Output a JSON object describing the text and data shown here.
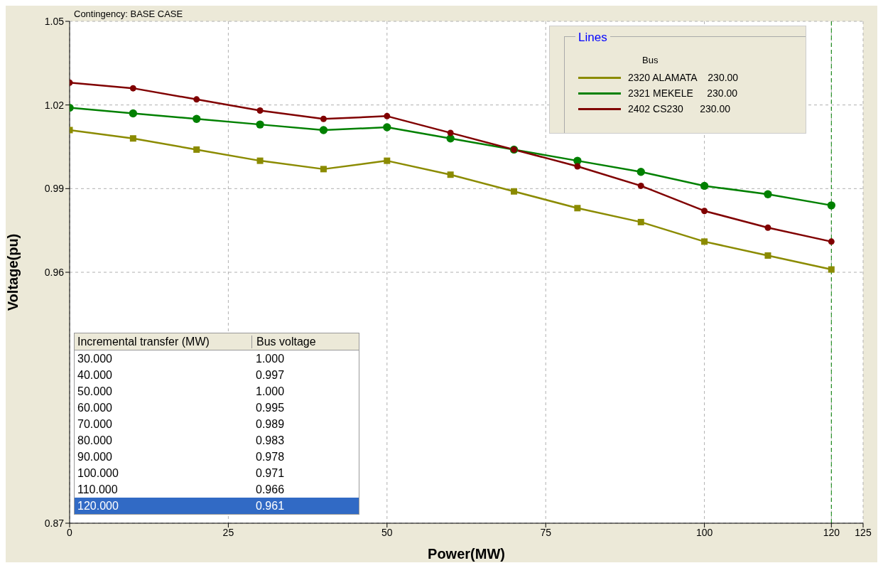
{
  "chart_data": {
    "type": "line",
    "title": "Contingency:  BASE CASE",
    "xlabel": "Power(MW)",
    "ylabel": "Voltage(pu)",
    "legend_title": "Lines",
    "x": [
      0,
      10,
      20,
      30,
      40,
      50,
      60,
      70,
      80,
      90,
      100,
      110,
      120
    ],
    "series": [
      {
        "name": "2320 ALAMATA    230.00",
        "color": "#8b8b00",
        "marker": "square",
        "values": [
          1.011,
          1.008,
          1.004,
          1.0,
          0.997,
          1.0,
          0.995,
          0.989,
          0.983,
          0.978,
          0.971,
          0.966,
          0.961
        ]
      },
      {
        "name": "2321 MEKELE     230.00",
        "color": "#008000",
        "marker": "circle",
        "values": [
          1.019,
          1.017,
          1.015,
          1.013,
          1.011,
          1.012,
          1.008,
          1.004,
          1.0,
          0.996,
          0.991,
          0.988,
          0.984
        ]
      },
      {
        "name": "2402 CS230      230.00",
        "color": "#800000",
        "marker": "circle",
        "values": [
          1.028,
          1.026,
          1.022,
          1.018,
          1.015,
          1.016,
          1.01,
          1.004,
          0.998,
          0.991,
          0.982,
          0.976,
          0.971
        ]
      }
    ],
    "xlim": [
      0,
      125
    ],
    "xticks": [
      0,
      25,
      50,
      75,
      100,
      120,
      125
    ],
    "ylim": [
      0.87,
      1.05
    ],
    "yticks": [
      0.87,
      0.96,
      0.99,
      1.02,
      1.05
    ],
    "grid": true,
    "legend": "top right",
    "line_style": "solid",
    "ref_lines": [
      {
        "axis": "x",
        "value": 120,
        "color": "#008000",
        "line_style": "dashed"
      }
    ],
    "annotations": [
      "Bus",
      "Incremental transfer (MW)",
      "Bus voltage",
      "30.000",
      "1.000",
      "40.000",
      "0.997",
      "50.000",
      "1.000",
      "60.000",
      "0.995",
      "70.000",
      "0.989",
      "80.000",
      "0.983",
      "90.000",
      "0.978",
      "100.000",
      "0.971",
      "110.000",
      "0.966",
      "120.000",
      "0.961"
    ]
  }
}
